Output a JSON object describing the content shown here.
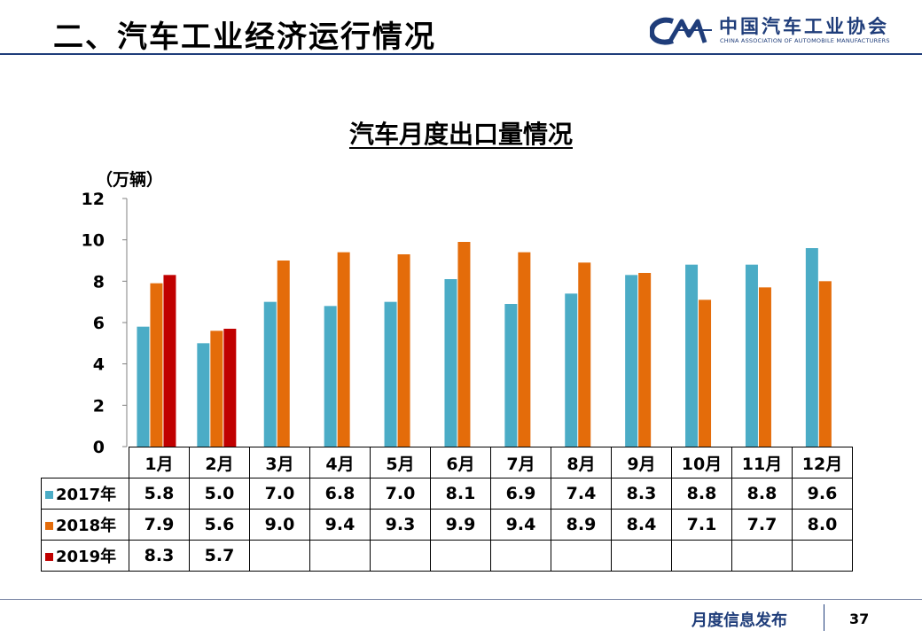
{
  "header": {
    "title": "二、汽车工业经济运行情况",
    "logo_cn": "中国汽车工业协会",
    "logo_en": "CHINA ASSOCIATION OF AUTOMOBILE MANUFACTURERS",
    "logo_mark": "CAAM mark"
  },
  "footer": {
    "text": "月度信息发布",
    "page": "37"
  },
  "colors": {
    "s2017": "#4bacc6",
    "s2018": "#e46c0a",
    "s2019": "#c00000",
    "brand": "#1f3d7a"
  },
  "chart_data": {
    "type": "bar",
    "title": "汽车月度出口量情况",
    "ylabel": "（万辆）",
    "xlabel": "",
    "ylim": [
      0,
      12
    ],
    "yticks": [
      0,
      2,
      4,
      6,
      8,
      10,
      12
    ],
    "grid": false,
    "categories": [
      "1月",
      "2月",
      "3月",
      "4月",
      "5月",
      "6月",
      "7月",
      "8月",
      "9月",
      "10月",
      "11月",
      "12月"
    ],
    "series": [
      {
        "name": "2017年",
        "values": [
          5.8,
          5.0,
          7.0,
          6.8,
          7.0,
          8.1,
          6.9,
          7.4,
          8.3,
          8.8,
          8.8,
          9.6
        ]
      },
      {
        "name": "2018年",
        "values": [
          7.9,
          5.6,
          9.0,
          9.4,
          9.3,
          9.9,
          9.4,
          8.9,
          8.4,
          7.1,
          7.7,
          8.0
        ]
      },
      {
        "name": "2019年",
        "values": [
          8.3,
          5.7,
          null,
          null,
          null,
          null,
          null,
          null,
          null,
          null,
          null,
          null
        ]
      }
    ]
  }
}
